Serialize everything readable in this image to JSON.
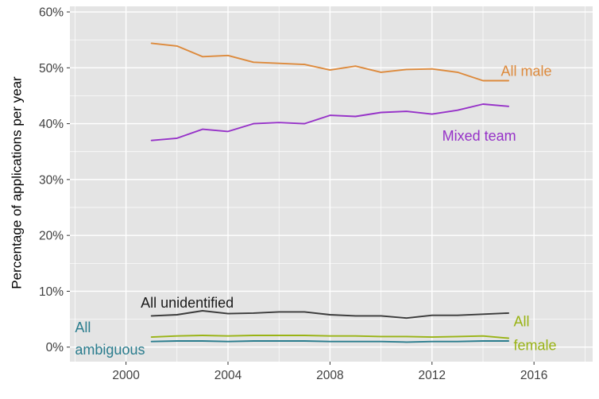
{
  "chart_data": {
    "type": "line",
    "title": "",
    "xlabel": "",
    "ylabel": "Percentage of applications per year",
    "x": [
      2001,
      2002,
      2003,
      2004,
      2005,
      2006,
      2007,
      2008,
      2009,
      2010,
      2011,
      2012,
      2013,
      2014,
      2015
    ],
    "series": [
      {
        "name": "All male",
        "color": "#dd8a3c",
        "values": [
          54.4,
          53.9,
          52.0,
          52.2,
          51.0,
          50.8,
          50.6,
          49.6,
          50.3,
          49.2,
          49.7,
          49.8,
          49.2,
          47.7,
          47.7
        ]
      },
      {
        "name": "Mixed team",
        "color": "#9632c8",
        "values": [
          37.0,
          37.4,
          39.0,
          38.6,
          40.0,
          40.2,
          40.0,
          41.5,
          41.3,
          42.0,
          42.2,
          41.7,
          42.4,
          43.5,
          43.1
        ]
      },
      {
        "name": "All unidentified",
        "color": "#3a3a3a",
        "values": [
          5.6,
          5.8,
          6.5,
          6.0,
          6.1,
          6.3,
          6.3,
          5.8,
          5.6,
          5.6,
          5.2,
          5.7,
          5.7,
          5.9,
          6.1
        ]
      },
      {
        "name": "All female",
        "color": "#99b314",
        "values": [
          1.8,
          2.0,
          2.1,
          2.0,
          2.1,
          2.1,
          2.1,
          2.0,
          2.0,
          1.9,
          1.9,
          1.8,
          1.9,
          2.0,
          1.6
        ]
      },
      {
        "name": "All ambiguous",
        "color": "#2b7d8e",
        "values": [
          1.0,
          1.1,
          1.1,
          1.0,
          1.1,
          1.1,
          1.1,
          1.0,
          1.0,
          1.0,
          0.9,
          1.0,
          1.0,
          1.1,
          1.1
        ]
      }
    ],
    "xlim": [
      1997.8,
      2018.3
    ],
    "ylim": [
      -2.6,
      61.0
    ],
    "xticks": [
      2000,
      2004,
      2008,
      2012,
      2016
    ],
    "xtick_labels": [
      "2000",
      "2004",
      "2008",
      "2012",
      "2016"
    ],
    "yticks": [
      0,
      10,
      20,
      30,
      40,
      50,
      60
    ],
    "ytick_labels": [
      "0%",
      "10%",
      "20%",
      "30%",
      "40%",
      "50%",
      "60%"
    ],
    "minor_xticks": [
      1998,
      2002,
      2006,
      2010,
      2014,
      2018
    ],
    "minor_yticks": [
      5,
      15,
      25,
      35,
      45,
      55
    ],
    "grid": true,
    "legend_position": "inline-annotations",
    "panel_bg": "#e4e4e4",
    "grid_color": "#ffffff",
    "tick_text_color": "#404040",
    "annotations": [
      {
        "lines": [
          "All male"
        ],
        "color": "#dd8a3c",
        "x": 2014.7,
        "y": 49.4,
        "anchor": "start",
        "line_height": 28
      },
      {
        "lines": [
          "Mixed team"
        ],
        "color": "#9632c8",
        "x": 2012.4,
        "y": 37.8,
        "anchor": "start",
        "line_height": 28
      },
      {
        "lines": [
          "All unidentified"
        ],
        "color": "#1a1a1a",
        "x": 2002.4,
        "y": 7.9,
        "anchor": "middle",
        "line_height": 28
      },
      {
        "lines": [
          "All",
          "ambiguous"
        ],
        "color": "#2b7d8e",
        "x": 1998.0,
        "y": 3.5,
        "anchor": "start",
        "line_height": 28
      },
      {
        "lines": [
          "All",
          "female"
        ],
        "color": "#99b314",
        "x": 2015.2,
        "y": 4.6,
        "anchor": "start",
        "line_height": 30
      }
    ]
  }
}
